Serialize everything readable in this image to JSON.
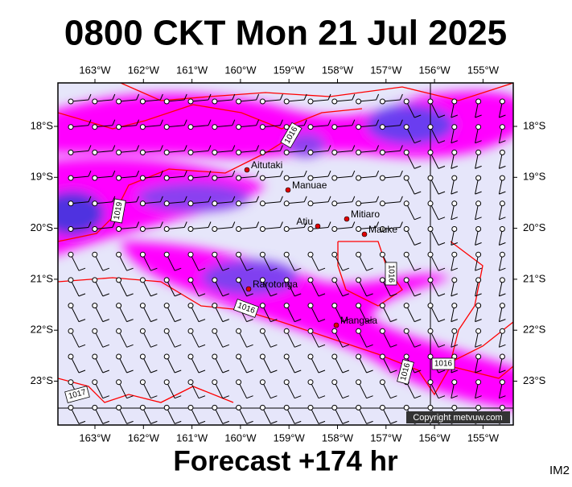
{
  "header": {
    "title": "0800 CKT Mon 21 Jul 2025"
  },
  "footer": {
    "text": "Forecast +174 hr",
    "code": "IM2"
  },
  "map": {
    "lon_labels": [
      "163°W",
      "162°W",
      "161°W",
      "160°W",
      "159°W",
      "158°W",
      "157°W",
      "156°W",
      "155°W"
    ],
    "lat_labels": [
      "18°S",
      "19°S",
      "20°S",
      "21°S",
      "22°S",
      "23°S"
    ],
    "places": [
      "Aitutaki",
      "Manuae",
      "Mitiaro",
      "Atiu",
      "Mauke",
      "Rarotonga",
      "Mangaia"
    ],
    "isobar_labels": [
      "1016",
      "1019",
      "1016",
      "1016",
      "1016",
      "1016",
      "1017"
    ],
    "copyright": "Copyright metvuw.com"
  }
}
